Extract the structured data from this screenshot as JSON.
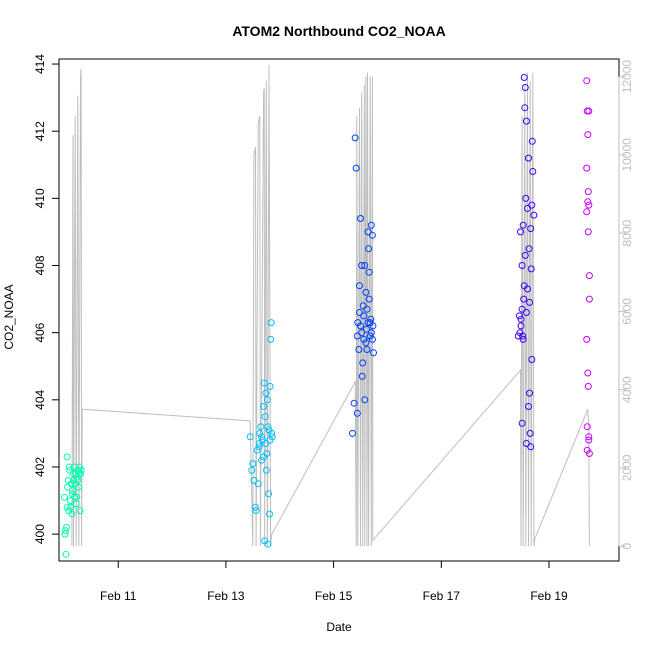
{
  "chart_data": {
    "type": "scatter",
    "title": "ATOM2 Northbound CO2_NOAA",
    "xlabel": "Date",
    "ylabel": "CO2_NOAA",
    "x_axis": {
      "ticks": [
        {
          "day": 11,
          "label": "Feb 11"
        },
        {
          "day": 13,
          "label": "Feb 13"
        },
        {
          "day": 15,
          "label": "Feb 15"
        },
        {
          "day": 17,
          "label": "Feb 17"
        },
        {
          "day": 19,
          "label": "Feb 19"
        }
      ],
      "range_days": [
        9.9,
        20.3
      ]
    },
    "y_axis": {
      "ticks": [
        400,
        402,
        404,
        406,
        408,
        410,
        412,
        414
      ],
      "range": [
        399.2,
        414.15
      ]
    },
    "y2_axis": {
      "color": "#bebebe",
      "ticks": [
        0,
        2000,
        4000,
        6000,
        8000,
        10000,
        12000
      ],
      "range": [
        -380,
        12450
      ]
    },
    "grid": false,
    "altitude_profile": {
      "color": "#bebebe",
      "points": [
        [
          10.14,
          0
        ],
        [
          10.16,
          10500
        ],
        [
          10.17,
          0
        ],
        [
          10.2,
          11000
        ],
        [
          10.22,
          0
        ],
        [
          10.25,
          11500
        ],
        [
          10.27,
          0
        ],
        [
          10.3,
          12000
        ],
        [
          10.31,
          12200
        ],
        [
          10.32,
          0
        ],
        [
          10.33,
          3500
        ],
        [
          13.45,
          3200
        ],
        [
          13.5,
          0
        ],
        [
          13.52,
          10000
        ],
        [
          13.55,
          10200
        ],
        [
          13.56,
          0
        ],
        [
          13.6,
          10800
        ],
        [
          13.63,
          11000
        ],
        [
          13.64,
          0
        ],
        [
          13.7,
          11600
        ],
        [
          13.71,
          11700
        ],
        [
          13.72,
          0
        ],
        [
          13.75,
          11900
        ],
        [
          13.77,
          0
        ],
        [
          13.8,
          12300
        ],
        [
          13.83,
          0
        ],
        [
          13.85,
          300
        ],
        [
          15.4,
          4200
        ],
        [
          15.42,
          0
        ],
        [
          15.43,
          11000
        ],
        [
          15.45,
          0
        ],
        [
          15.48,
          11200
        ],
        [
          15.5,
          0
        ],
        [
          15.52,
          11600
        ],
        [
          15.54,
          0
        ],
        [
          15.57,
          11800
        ],
        [
          15.58,
          0
        ],
        [
          15.6,
          12000
        ],
        [
          15.62,
          0
        ],
        [
          15.63,
          12100
        ],
        [
          15.65,
          0
        ],
        [
          15.68,
          12000
        ],
        [
          15.7,
          0
        ],
        [
          15.72,
          12000
        ],
        [
          15.73,
          150
        ],
        [
          18.47,
          4500
        ],
        [
          18.48,
          0
        ],
        [
          18.5,
          11000
        ],
        [
          18.52,
          0
        ],
        [
          18.55,
          11800
        ],
        [
          18.57,
          0
        ],
        [
          18.6,
          12100
        ],
        [
          18.62,
          0
        ],
        [
          18.65,
          11900
        ],
        [
          18.67,
          0
        ],
        [
          18.7,
          12100
        ],
        [
          18.72,
          0
        ],
        [
          18.74,
          200
        ],
        [
          19.72,
          3500
        ],
        [
          19.74,
          3000
        ],
        [
          19.75,
          0
        ]
      ]
    },
    "series": [
      {
        "color": "#00ffb3",
        "points": [
          [
            10.0,
            401.1
          ],
          [
            10.01,
            400.0
          ],
          [
            10.02,
            400.1
          ],
          [
            10.03,
            399.4
          ],
          [
            10.04,
            400.2
          ],
          [
            10.05,
            400.8
          ],
          [
            10.06,
            401.4
          ],
          [
            10.07,
            401.6
          ],
          [
            10.08,
            400.7
          ],
          [
            10.09,
            402.0
          ],
          [
            10.1,
            401.9
          ],
          [
            10.11,
            401.0
          ],
          [
            10.12,
            400.8
          ],
          [
            10.13,
            401.5
          ],
          [
            10.14,
            400.6
          ],
          [
            10.15,
            401.3
          ],
          [
            10.16,
            401.8
          ],
          [
            10.17,
            401.6
          ],
          [
            10.18,
            402.0
          ],
          [
            10.19,
            401.1
          ],
          [
            10.2,
            401.5
          ],
          [
            10.21,
            401.8
          ],
          [
            10.22,
            400.9
          ],
          [
            10.23,
            401.1
          ],
          [
            10.24,
            401.7
          ],
          [
            10.25,
            401.9
          ],
          [
            10.26,
            401.4
          ],
          [
            10.27,
            401.8
          ],
          [
            10.28,
            402.0
          ],
          [
            10.29,
            400.7
          ],
          [
            10.3,
            401.8
          ],
          [
            10.31,
            401.9
          ],
          [
            10.05,
            402.3
          ],
          [
            10.15,
            401.2
          ],
          [
            10.25,
            401.6
          ]
        ]
      },
      {
        "color": "#00bfff",
        "points": [
          [
            13.45,
            402.9
          ],
          [
            13.48,
            401.9
          ],
          [
            13.5,
            402.1
          ],
          [
            13.52,
            401.6
          ],
          [
            13.55,
            400.8
          ],
          [
            13.56,
            400.7
          ],
          [
            13.58,
            402.5
          ],
          [
            13.6,
            401.5
          ],
          [
            13.62,
            402.6
          ],
          [
            13.63,
            403.0
          ],
          [
            13.65,
            403.2
          ],
          [
            13.66,
            402.2
          ],
          [
            13.68,
            402.8
          ],
          [
            13.7,
            402.3
          ],
          [
            13.71,
            404.5
          ],
          [
            13.72,
            399.8
          ],
          [
            13.73,
            403.5
          ],
          [
            13.74,
            404.2
          ],
          [
            13.75,
            401.9
          ],
          [
            13.76,
            402.4
          ],
          [
            13.77,
            404.0
          ],
          [
            13.78,
            399.7
          ],
          [
            13.79,
            401.2
          ],
          [
            13.8,
            403.1
          ],
          [
            13.81,
            400.6
          ],
          [
            13.82,
            404.4
          ],
          [
            13.83,
            405.8
          ],
          [
            13.84,
            406.3
          ],
          [
            13.85,
            403.0
          ],
          [
            13.86,
            402.9
          ],
          [
            13.62,
            402.7
          ],
          [
            13.66,
            402.9
          ],
          [
            13.7,
            403.8
          ],
          [
            13.74,
            402.7
          ],
          [
            13.78,
            403.2
          ],
          [
            13.82,
            402.8
          ]
        ]
      },
      {
        "color": "#0040ff",
        "points": [
          [
            15.35,
            403.0
          ],
          [
            15.38,
            403.9
          ],
          [
            15.4,
            411.8
          ],
          [
            15.42,
            410.9
          ],
          [
            15.44,
            403.6
          ],
          [
            15.45,
            406.3
          ],
          [
            15.47,
            405.5
          ],
          [
            15.48,
            407.4
          ],
          [
            15.5,
            409.4
          ],
          [
            15.52,
            406.0
          ],
          [
            15.53,
            404.7
          ],
          [
            15.55,
            406.8
          ],
          [
            15.56,
            405.8
          ],
          [
            15.58,
            408.0
          ],
          [
            15.6,
            407.2
          ],
          [
            15.61,
            406.1
          ],
          [
            15.62,
            405.5
          ],
          [
            15.64,
            406.3
          ],
          [
            15.65,
            408.5
          ],
          [
            15.66,
            407.0
          ],
          [
            15.68,
            405.9
          ],
          [
            15.69,
            406.4
          ],
          [
            15.7,
            409.2
          ],
          [
            15.72,
            408.9
          ],
          [
            15.73,
            406.2
          ],
          [
            15.74,
            405.4
          ],
          [
            15.5,
            406.2
          ],
          [
            15.54,
            405.1
          ],
          [
            15.58,
            404.0
          ],
          [
            15.62,
            406.7
          ],
          [
            15.66,
            407.8
          ],
          [
            15.7,
            406.0
          ],
          [
            15.44,
            405.9
          ],
          [
            15.48,
            406.6
          ],
          [
            15.52,
            408.0
          ],
          [
            15.56,
            406.5
          ],
          [
            15.6,
            405.7
          ],
          [
            15.64,
            409.0
          ],
          [
            15.68,
            406.3
          ],
          [
            15.72,
            405.8
          ]
        ]
      },
      {
        "color": "#4000ff",
        "points": [
          [
            18.43,
            405.9
          ],
          [
            18.45,
            406.5
          ],
          [
            18.47,
            409.0
          ],
          [
            18.48,
            406.2
          ],
          [
            18.5,
            408.0
          ],
          [
            18.51,
            405.9
          ],
          [
            18.52,
            409.2
          ],
          [
            18.53,
            407.0
          ],
          [
            18.54,
            413.6
          ],
          [
            18.55,
            412.7
          ],
          [
            18.56,
            413.3
          ],
          [
            18.57,
            410.0
          ],
          [
            18.58,
            412.3
          ],
          [
            18.6,
            409.7
          ],
          [
            18.62,
            411.2
          ],
          [
            18.63,
            408.5
          ],
          [
            18.64,
            404.2
          ],
          [
            18.65,
            403.0
          ],
          [
            18.66,
            402.6
          ],
          [
            18.67,
            407.9
          ],
          [
            18.68,
            405.2
          ],
          [
            18.69,
            411.7
          ],
          [
            18.7,
            410.8
          ],
          [
            18.72,
            409.5
          ],
          [
            18.46,
            406.0
          ],
          [
            18.5,
            406.7
          ],
          [
            18.54,
            407.4
          ],
          [
            18.58,
            406.6
          ],
          [
            18.62,
            403.8
          ],
          [
            18.66,
            409.1
          ],
          [
            18.48,
            406.4
          ],
          [
            18.52,
            405.8
          ],
          [
            18.56,
            408.3
          ],
          [
            18.6,
            407.3
          ],
          [
            18.64,
            406.9
          ],
          [
            18.68,
            409.8
          ],
          [
            18.5,
            403.3
          ],
          [
            18.58,
            402.7
          ]
        ]
      },
      {
        "color": "#c800ff",
        "points": [
          [
            19.7,
            413.5
          ],
          [
            19.71,
            412.6
          ],
          [
            19.72,
            411.9
          ],
          [
            19.73,
            410.2
          ],
          [
            19.74,
            409.8
          ],
          [
            19.75,
            407.7
          ],
          [
            19.7,
            405.8
          ],
          [
            19.72,
            404.8
          ],
          [
            19.74,
            402.8
          ],
          [
            19.75,
            402.4
          ],
          [
            19.71,
            403.2
          ],
          [
            19.73,
            404.4
          ],
          [
            19.7,
            410.9
          ],
          [
            19.74,
            412.6
          ],
          [
            19.72,
            409.9
          ],
          [
            19.75,
            407.0
          ],
          [
            19.71,
            402.5
          ],
          [
            19.73,
            409.0
          ],
          [
            19.7,
            409.6
          ],
          [
            19.74,
            402.9
          ]
        ]
      }
    ]
  }
}
